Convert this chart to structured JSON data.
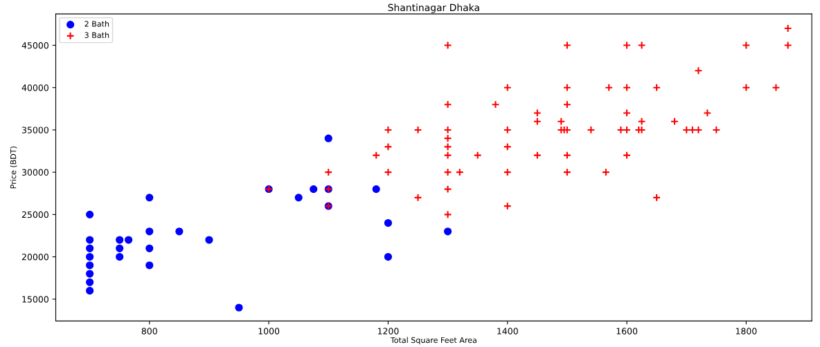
{
  "chart_data": {
    "type": "scatter",
    "title": "Shantinagar Dhaka",
    "xlabel": "Total Square Feet Area",
    "ylabel": "Price (BDT)",
    "xlim": [
      643,
      1910
    ],
    "ylim": [
      12420,
      48710
    ],
    "xticks": [
      800,
      1000,
      1200,
      1400,
      1600,
      1800
    ],
    "yticks": [
      15000,
      20000,
      25000,
      30000,
      35000,
      40000,
      45000
    ],
    "grid": false,
    "legend": "top left",
    "series": [
      {
        "name": "2 Bath",
        "color": "#0000ff",
        "marker": "circle",
        "x": [
          700,
          700,
          700,
          700,
          700,
          700,
          700,
          700,
          750,
          750,
          750,
          765,
          800,
          800,
          800,
          800,
          850,
          900,
          950,
          1000,
          1050,
          1075,
          1100,
          1100,
          1100,
          1180,
          1200,
          1200,
          1300
        ],
        "values": [
          25000,
          22000,
          21000,
          20000,
          19000,
          18000,
          17000,
          16000,
          22000,
          21000,
          20000,
          22000,
          27000,
          23000,
          21000,
          19000,
          23000,
          22000,
          14000,
          28000,
          27000,
          28000,
          34000,
          28000,
          26000,
          28000,
          24000,
          20000,
          23000
        ]
      },
      {
        "name": "3 Bath",
        "color": "#ff0000",
        "marker": "cross",
        "x": [
          1000,
          1100,
          1100,
          1100,
          1180,
          1200,
          1200,
          1200,
          1250,
          1250,
          1300,
          1300,
          1300,
          1300,
          1300,
          1300,
          1300,
          1300,
          1300,
          1320,
          1350,
          1380,
          1400,
          1400,
          1400,
          1400,
          1400,
          1450,
          1450,
          1450,
          1490,
          1490,
          1495,
          1500,
          1500,
          1500,
          1500,
          1500,
          1500,
          1540,
          1565,
          1570,
          1590,
          1600,
          1600,
          1600,
          1600,
          1600,
          1620,
          1625,
          1625,
          1625,
          1650,
          1650,
          1680,
          1700,
          1710,
          1720,
          1720,
          1735,
          1750,
          1800,
          1800,
          1850,
          1870,
          1870
        ],
        "values": [
          28000,
          30000,
          28000,
          26000,
          32000,
          35000,
          33000,
          30000,
          35000,
          27000,
          45000,
          38000,
          35000,
          34000,
          33000,
          32000,
          30000,
          28000,
          25000,
          30000,
          32000,
          38000,
          40000,
          35000,
          33000,
          30000,
          26000,
          37000,
          36000,
          32000,
          36000,
          35000,
          35000,
          45000,
          40000,
          38000,
          35000,
          32000,
          30000,
          35000,
          30000,
          40000,
          35000,
          45000,
          40000,
          37000,
          35000,
          32000,
          35000,
          45000,
          36000,
          35000,
          40000,
          27000,
          36000,
          35000,
          35000,
          42000,
          35000,
          37000,
          35000,
          45000,
          40000,
          40000,
          47000,
          45000
        ]
      }
    ]
  }
}
